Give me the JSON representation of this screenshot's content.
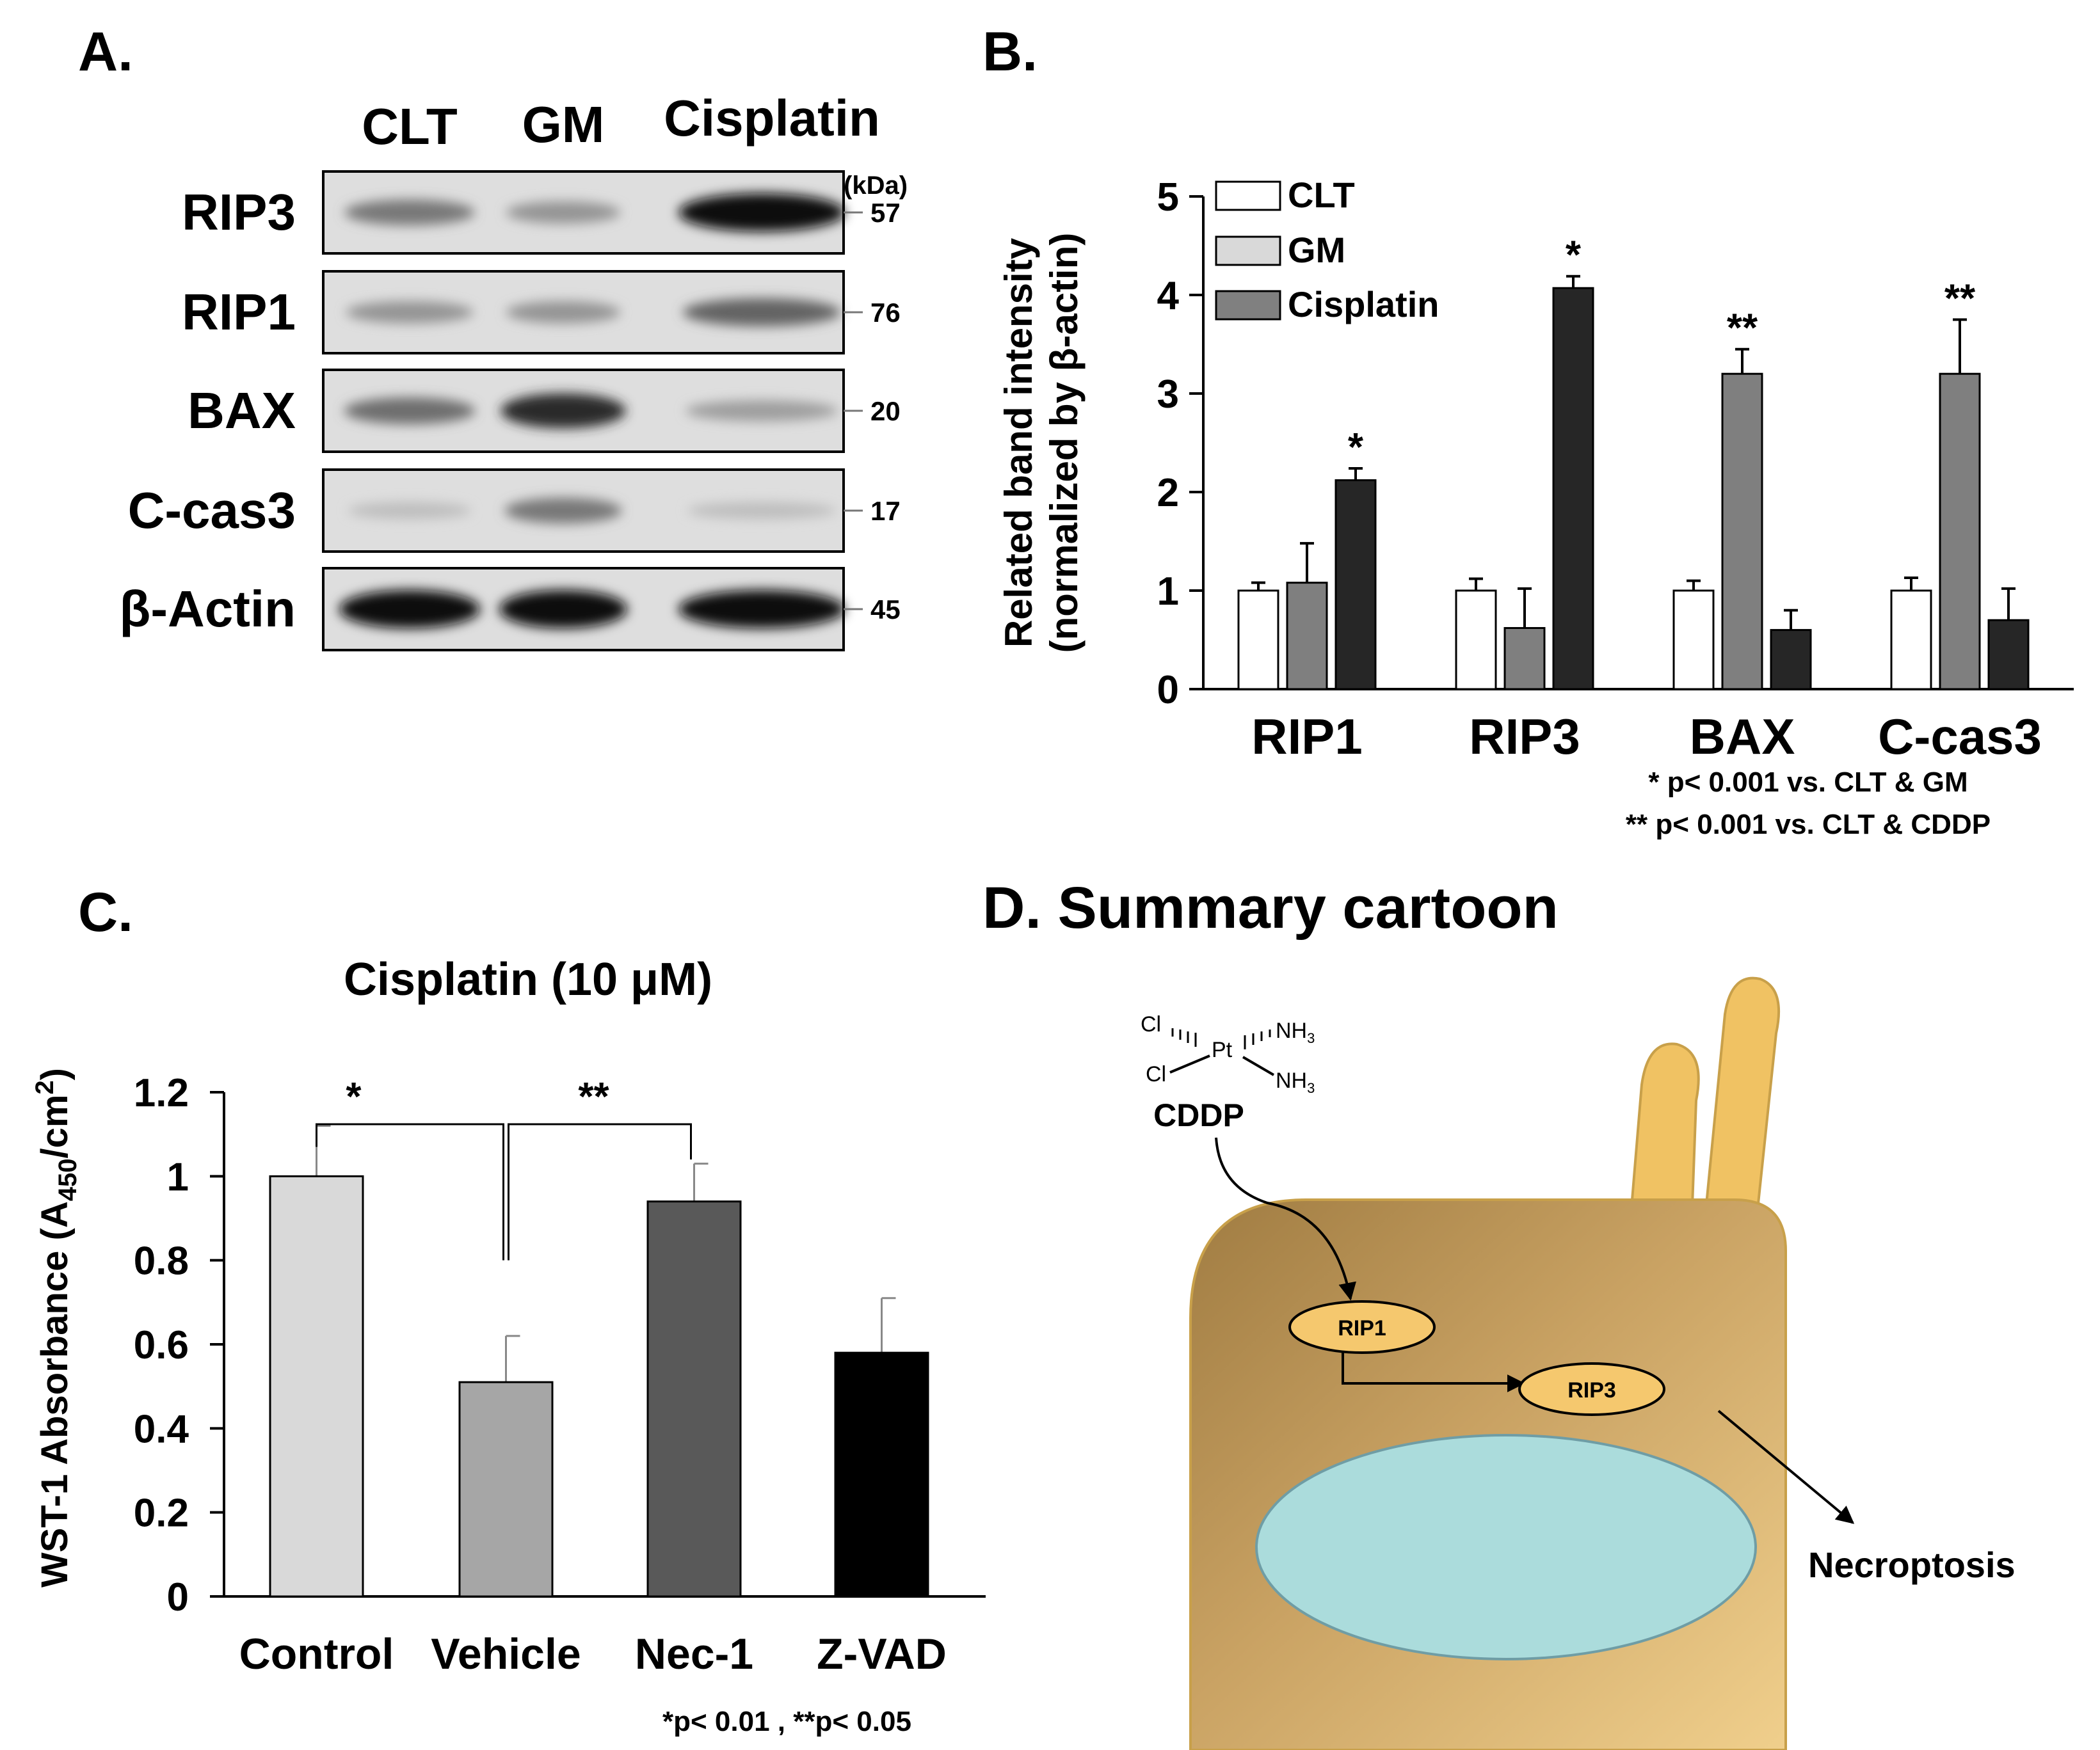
{
  "panelA": {
    "label": "A.",
    "lanes": [
      "CLT",
      "GM",
      "Cisplatin"
    ],
    "kda_label": "(kDa)",
    "blots": [
      {
        "name": "RIP3",
        "kda": "57",
        "intensity": [
          0.45,
          0.3,
          1.0
        ]
      },
      {
        "name": "RIP1",
        "kda": "76",
        "intensity": [
          0.3,
          0.3,
          0.55
        ]
      },
      {
        "name": "BAX",
        "kda": "20",
        "intensity": [
          0.5,
          0.85,
          0.25
        ]
      },
      {
        "name": "C-cas3",
        "kda": "17",
        "intensity": [
          0.08,
          0.45,
          0.08
        ]
      },
      {
        "name": "β-Actin",
        "kda": "45",
        "intensity": [
          1.0,
          1.0,
          1.0
        ]
      }
    ]
  },
  "panelB": {
    "label": "B.",
    "footnotes": [
      "* p< 0.001 vs. CLT & GM",
      "** p< 0.001 vs. CLT & CDDP"
    ]
  },
  "panelC": {
    "label": "C.",
    "footnote": "*p< 0.01 , **p< 0.05",
    "brackets": [
      {
        "from": 0,
        "to": 1,
        "mark": "*"
      },
      {
        "from": 1,
        "to": 2,
        "mark": "**"
      }
    ]
  },
  "panelD": {
    "label": "D. Summary cartoon",
    "cl_top": "Cl",
    "cl_bottom": "Cl",
    "pt": "Pt",
    "nh3": "NH",
    "nh3_sub": "3",
    "drug": "CDDP",
    "node1": "RIP1",
    "node2": "RIP3",
    "outcome": "Necroptosis"
  },
  "chart_data": [
    {
      "type": "bar",
      "title": "",
      "ylabel": "Related band intensity",
      "ylabel2": "(normalized by β-actin)",
      "categories": [
        "RIP1",
        "RIP3",
        "BAX",
        "C-cas3"
      ],
      "series": [
        {
          "name": "CLT",
          "color": "#ffffff",
          "values": [
            1.0,
            1.0,
            1.0,
            1.0
          ],
          "errors": [
            0.08,
            0.12,
            0.1,
            0.13
          ],
          "marks": [
            "",
            "",
            "",
            ""
          ]
        },
        {
          "name": "GM",
          "color": "#7f7f7f",
          "legend_color": "#d9d9d9",
          "values": [
            1.08,
            0.62,
            3.2,
            3.2
          ],
          "errors": [
            0.4,
            0.4,
            0.25,
            0.55
          ],
          "marks": [
            "",
            "",
            "**",
            "**"
          ]
        },
        {
          "name": "Cisplatin",
          "color": "#262626",
          "legend_color": "#808080",
          "values": [
            2.12,
            4.07,
            0.6,
            0.7
          ],
          "errors": [
            0.12,
            0.12,
            0.2,
            0.32
          ],
          "marks": [
            "*",
            "*",
            "",
            ""
          ]
        }
      ],
      "ylim": [
        0,
        5
      ],
      "yticks": [
        "0",
        "1",
        "2",
        "3",
        "4",
        "5"
      ]
    },
    {
      "type": "bar",
      "title": "Cisplatin (10 μM)",
      "ylabel": "WST-1 Absorbance  (A",
      "ylabel_sub": "450",
      "ylabel_tail": "/cm",
      "ylabel_sup": "2",
      "ylabel_end": ")",
      "categories": [
        "Control",
        "Vehicle",
        "Nec-1",
        "Z-VAD"
      ],
      "values": [
        1.0,
        0.51,
        0.94,
        0.58
      ],
      "errors": [
        0.12,
        0.11,
        0.09,
        0.13
      ],
      "colors": [
        "#d9d9d9",
        "#a6a6a6",
        "#595959",
        "#000000"
      ],
      "ylim": [
        0,
        1.2
      ],
      "yticks": [
        "0",
        "0.2",
        "0.4",
        "0.6",
        "0.8",
        "1",
        "1.2"
      ]
    }
  ]
}
